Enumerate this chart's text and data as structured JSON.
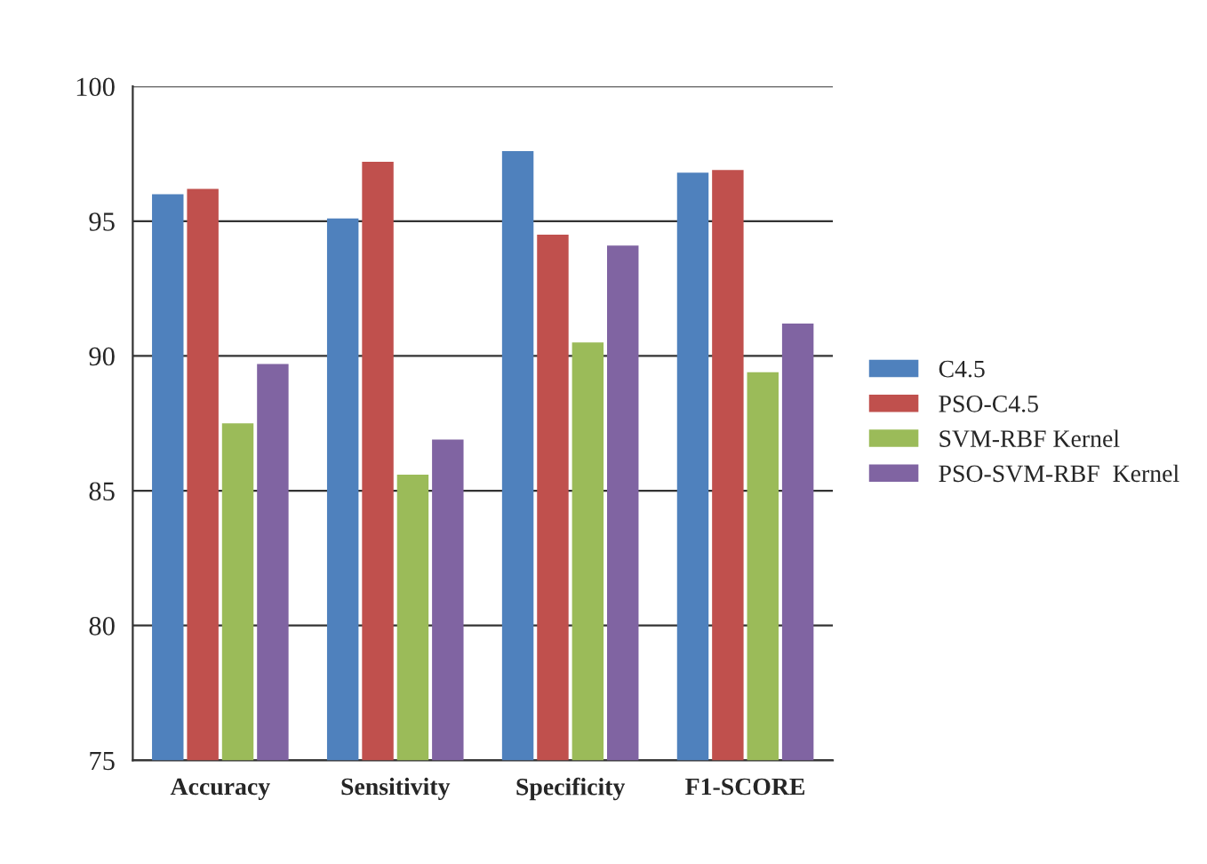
{
  "chart_data": {
    "type": "bar",
    "categories": [
      "Accuracy",
      "Sensitivity",
      "Specificity",
      "F1-SCORE"
    ],
    "series": [
      {
        "name": "C4.5",
        "color": "#4f81bd",
        "values": [
          96.0,
          95.1,
          97.6,
          96.8
        ]
      },
      {
        "name": "PSO-C4.5",
        "color": "#c0504d",
        "values": [
          96.2,
          97.2,
          94.5,
          96.9
        ]
      },
      {
        "name": "SVM-RBF Kernel",
        "color": "#9bbb59",
        "values": [
          87.5,
          85.6,
          90.5,
          89.4
        ]
      },
      {
        "name": "PSO-SVM-RBF  Kernel",
        "color": "#8064a2",
        "values": [
          89.7,
          86.9,
          94.1,
          91.2
        ]
      }
    ],
    "ylim": [
      75,
      100
    ],
    "yticks": [
      75,
      80,
      85,
      90,
      95,
      100
    ],
    "grid": "y",
    "legend": "right"
  }
}
